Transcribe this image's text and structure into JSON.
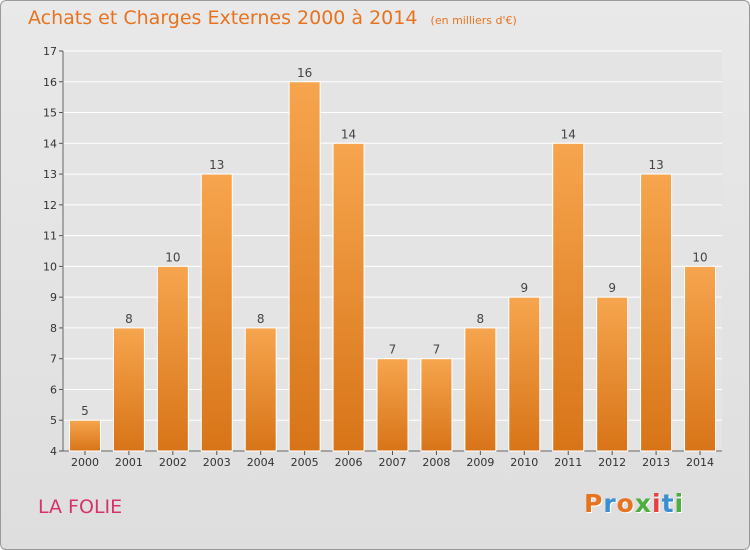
{
  "chart_data": {
    "type": "bar",
    "title": "Achats et Charges Externes 2000 à 2014",
    "subtitle": "(en milliers d'€)",
    "categories": [
      "2000",
      "2001",
      "2002",
      "2003",
      "2004",
      "2005",
      "2006",
      "2007",
      "2008",
      "2009",
      "2010",
      "2011",
      "2012",
      "2013",
      "2014"
    ],
    "values": [
      5,
      8,
      10,
      13,
      8,
      16,
      14,
      7,
      7,
      8,
      9,
      14,
      9,
      13,
      10
    ],
    "ylim": [
      4,
      17
    ],
    "yticks": [
      4,
      5,
      6,
      7,
      8,
      9,
      10,
      11,
      12,
      13,
      14,
      15,
      16,
      17
    ],
    "grid": true,
    "bar_color_top": "#f6a54e",
    "bar_color_bottom": "#d87418"
  },
  "footer": {
    "place": "LA FOLIE",
    "logo_text": "Proxiti",
    "logo_colors": [
      "#e8731f",
      "#3a8fd1",
      "#e8731f",
      "#4caf3d",
      "#e84040",
      "#3a8fd1",
      "#4caf3d"
    ]
  }
}
